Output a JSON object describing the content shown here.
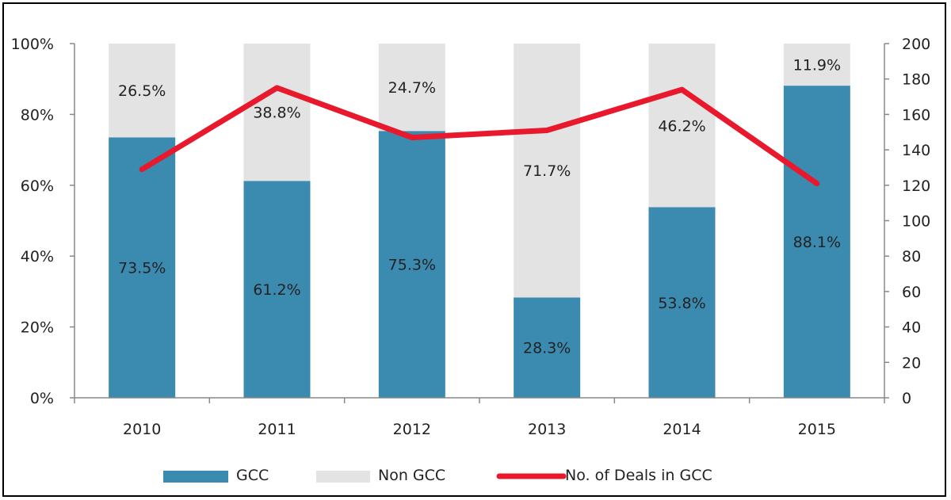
{
  "chart_data": {
    "type": "bar",
    "stacked": true,
    "categories": [
      "2010",
      "2011",
      "2012",
      "2013",
      "2014",
      "2015"
    ],
    "series": [
      {
        "name": "GCC",
        "axis": "left",
        "kind": "bar",
        "color": "#3b8ab0",
        "values": [
          73.5,
          61.2,
          75.3,
          28.3,
          53.8,
          88.1
        ],
        "labels": [
          "73.5%",
          "61.2%",
          "75.3%",
          "28.3%",
          "53.8%",
          "88.1%"
        ]
      },
      {
        "name": "Non GCC",
        "axis": "left",
        "kind": "bar",
        "color": "#e3e3e3",
        "values": [
          26.5,
          38.8,
          24.7,
          71.7,
          46.2,
          11.9
        ],
        "labels": [
          "26.5%",
          "38.8%",
          "24.7%",
          "71.7%",
          "46.2%",
          "11.9%"
        ]
      },
      {
        "name": "No. of Deals in GCC",
        "axis": "right",
        "kind": "line",
        "color": "#e8192c",
        "values": [
          129,
          175,
          147,
          151,
          174,
          121
        ]
      }
    ],
    "y_left": {
      "range": [
        0,
        100
      ],
      "ticks": [
        "0%",
        "20%",
        "40%",
        "60%",
        "80%",
        "100%"
      ],
      "tick_values": [
        0,
        20,
        40,
        60,
        80,
        100
      ]
    },
    "y_right": {
      "range": [
        0,
        200
      ],
      "ticks": [
        "0",
        "20",
        "40",
        "60",
        "80",
        "100",
        "120",
        "140",
        "160",
        "180",
        "200"
      ],
      "tick_values": [
        0,
        20,
        40,
        60,
        80,
        100,
        120,
        140,
        160,
        180,
        200
      ]
    },
    "title": "",
    "xlabel": "",
    "ylabel": "",
    "grid": false,
    "legend_position": "bottom"
  }
}
